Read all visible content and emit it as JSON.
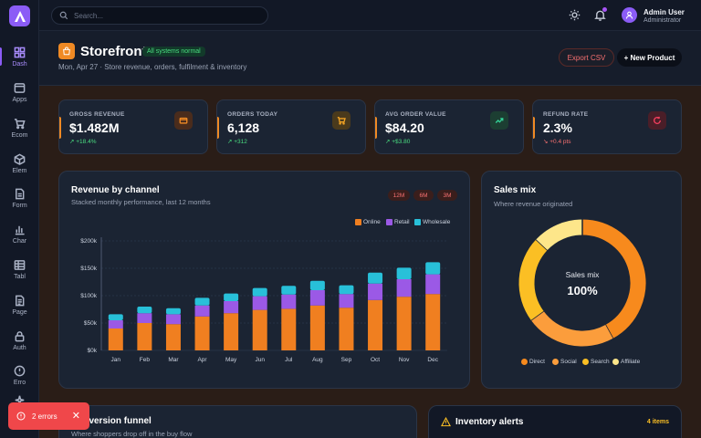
{
  "sidebar": {
    "items": [
      {
        "label": "Dash",
        "icon": "dashboard-icon",
        "active": true
      },
      {
        "label": "Apps",
        "icon": "apps-icon"
      },
      {
        "label": "Ecom",
        "icon": "cart-icon"
      },
      {
        "label": "Elem",
        "icon": "box-icon"
      },
      {
        "label": "Form",
        "icon": "form-icon"
      },
      {
        "label": "Char",
        "icon": "chart-icon"
      },
      {
        "label": "Tabl",
        "icon": "table-icon"
      },
      {
        "label": "Page",
        "icon": "page-icon"
      },
      {
        "label": "Auth",
        "icon": "lock-icon"
      },
      {
        "label": "Erro",
        "icon": "alert-icon"
      }
    ]
  },
  "topbar": {
    "search_placeholder": "Search...",
    "user_name": "Admin User",
    "user_role": "Administrator"
  },
  "header": {
    "title": "Storefront",
    "status_badge": "All systems normal",
    "subtitle": "Mon, Apr 27 · Store revenue, orders, fulfilment & inventory",
    "export_label": "Export CSV",
    "new_label": "+ New Product"
  },
  "stats": [
    {
      "label": "GROSS REVENUE",
      "value": "$1.482M",
      "delta": "↗ +18.4%",
      "trend": "up",
      "icon": "wallet-icon"
    },
    {
      "label": "ORDERS TODAY",
      "value": "6,128",
      "delta": "↗ +312",
      "trend": "up",
      "icon": "cart-icon"
    },
    {
      "label": "AVG ORDER VALUE",
      "value": "$84.20",
      "delta": "↗ +$3.80",
      "trend": "up",
      "icon": "trend-up-icon"
    },
    {
      "label": "REFUND RATE",
      "value": "2.3%",
      "delta": "↘ +0.4 pts",
      "trend": "down",
      "icon": "refresh-icon"
    }
  ],
  "revenue_card": {
    "title": "Revenue by channel",
    "subtitle": "Stacked monthly performance, last 12 months",
    "ranges": [
      "12M",
      "6M",
      "3M"
    ]
  },
  "mix_card": {
    "title": "Sales mix",
    "subtitle": "Where revenue originated",
    "center_label": "Sales mix",
    "center_value": "100%"
  },
  "funnel_card": {
    "title": "Conversion funnel",
    "subtitle": "Where shoppers drop off in the buy flow"
  },
  "inventory_card": {
    "title": "Inventory alerts",
    "count": "4 items"
  },
  "toast": {
    "label": "2 errors"
  },
  "colors": {
    "online": "#f07f20",
    "retail": "#9b59e6",
    "wholesale": "#28c0d9",
    "direct": "#f78a1d",
    "social": "#fb9d3c",
    "search": "#fbbf24",
    "affiliate": "#fde68a"
  },
  "chart_data": [
    {
      "type": "bar",
      "stacked": true,
      "categories": [
        "Jan",
        "Feb",
        "Mar",
        "Apr",
        "May",
        "Jun",
        "Jul",
        "Aug",
        "Sep",
        "Oct",
        "Nov",
        "Dec"
      ],
      "series": [
        {
          "name": "Online",
          "values": [
            40,
            50,
            48,
            62,
            68,
            74,
            76,
            82,
            78,
            92,
            98,
            103
          ]
        },
        {
          "name": "Retail",
          "values": [
            15,
            18,
            18,
            20,
            22,
            25,
            26,
            28,
            25,
            30,
            32,
            36
          ]
        },
        {
          "name": "Wholesale",
          "values": [
            11,
            12,
            11,
            14,
            14,
            15,
            16,
            17,
            16,
            20,
            21,
            22
          ]
        }
      ],
      "yticks": [
        "$0k",
        "$50k",
        "$100k",
        "$150k",
        "$200k"
      ],
      "ylim": [
        0,
        200
      ],
      "legend": "top-right",
      "grid": true
    },
    {
      "type": "pie",
      "donut": true,
      "labels": [
        "Direct",
        "Social",
        "Search",
        "Affiliate"
      ],
      "values": [
        42,
        23,
        22,
        13
      ],
      "legend": "bottom"
    }
  ]
}
